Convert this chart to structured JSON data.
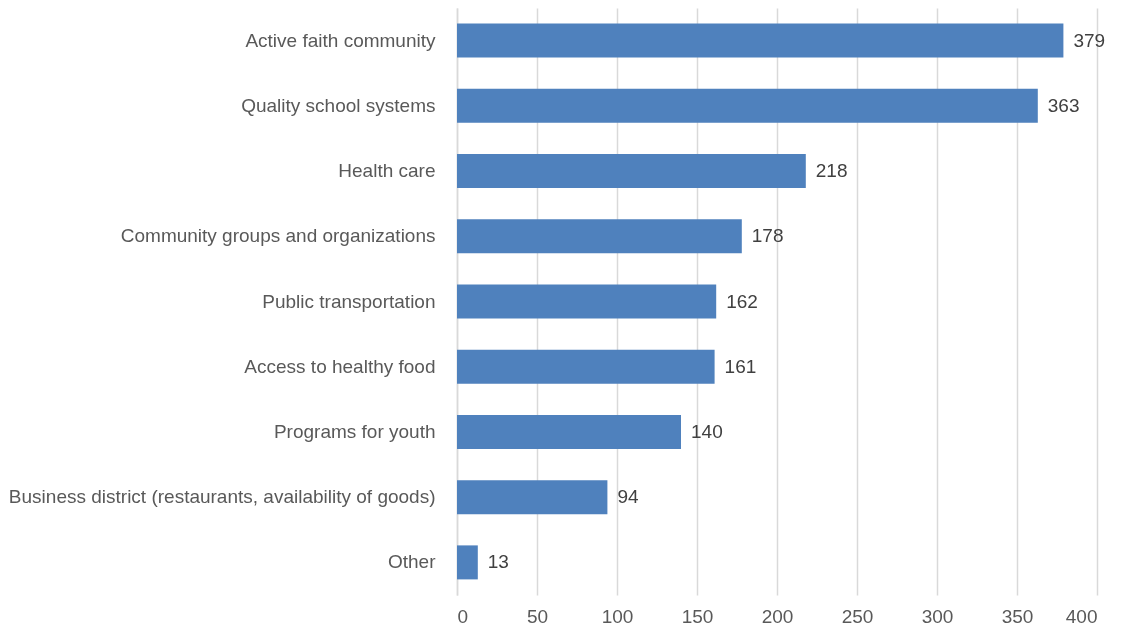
{
  "chart_data": {
    "type": "bar",
    "orientation": "horizontal",
    "categories": [
      "Active faith community",
      "Quality school systems",
      "Health care",
      "Community groups and organizations",
      "Public transportation",
      "Access to healthy food",
      "Programs for youth",
      "Business district (restaurants, availability of goods)",
      "Other"
    ],
    "values": [
      379,
      363,
      218,
      178,
      162,
      161,
      140,
      94,
      13
    ],
    "color": "#4f81bd",
    "xlim": [
      0,
      400
    ],
    "xticks": [
      0,
      50,
      100,
      150,
      200,
      250,
      300,
      350,
      400
    ],
    "grid": "x",
    "data_labels": true
  }
}
